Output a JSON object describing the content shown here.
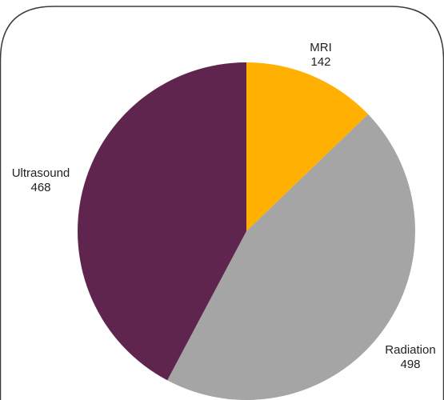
{
  "chart_data": {
    "type": "pie",
    "title": "",
    "legend": "none",
    "slices": [
      {
        "label": "MRI",
        "value": 142,
        "value_text": "142",
        "color": "#FFB000"
      },
      {
        "label": "Radiation",
        "value": 498,
        "value_text": "498",
        "color": "#A5A5A5"
      },
      {
        "label": "Ultrasound",
        "value": 468,
        "value_text": "468",
        "color": "#60254F"
      }
    ],
    "start_angle_deg": 0,
    "direction": "clockwise"
  }
}
